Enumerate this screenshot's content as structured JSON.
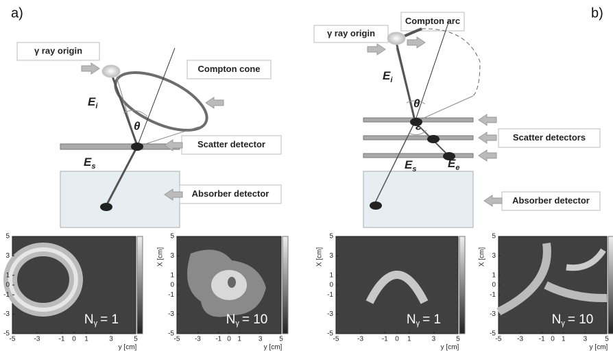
{
  "panels": [
    {
      "label": "a)",
      "origin_label": "γ ray origin",
      "arc_label": "Compton cone",
      "initial_energy": {
        "symbol": "E",
        "subscript": "i"
      },
      "angle": "θ",
      "scattered_energy": {
        "symbol": "E",
        "subscript": "s"
      },
      "scatter_label": "Scatter detector",
      "absorber_label": "Absorber detector",
      "images": [
        {
          "count": {
            "symbol": "N",
            "subscript": "γ",
            "text": "= 1"
          }
        },
        {
          "count": {
            "symbol": "N",
            "subscript": "γ",
            "text": "= 10"
          }
        }
      ]
    },
    {
      "label": "b)",
      "origin_label": "γ ray origin",
      "arc_label": "Compton arc",
      "initial_energy": {
        "symbol": "E",
        "subscript": "i"
      },
      "angle": "θ",
      "electron_angle": "ε",
      "scattered_energy": {
        "symbol": "E",
        "subscript": "s"
      },
      "electron_energy": {
        "symbol": "E",
        "subscript": "e"
      },
      "scatter_label": "Scatter detectors",
      "absorber_label": "Absorber detector",
      "images": [
        {
          "count": {
            "symbol": "N",
            "subscript": "γ",
            "text": "= 1"
          }
        },
        {
          "count": {
            "symbol": "N",
            "subscript": "γ",
            "text": "= 10"
          }
        }
      ]
    }
  ],
  "image_axes": {
    "vertical_label": "X [cm]",
    "horizontal_label": "y [cm]",
    "ticks": [
      -5,
      -3,
      -1,
      0,
      1,
      3,
      5
    ]
  }
}
